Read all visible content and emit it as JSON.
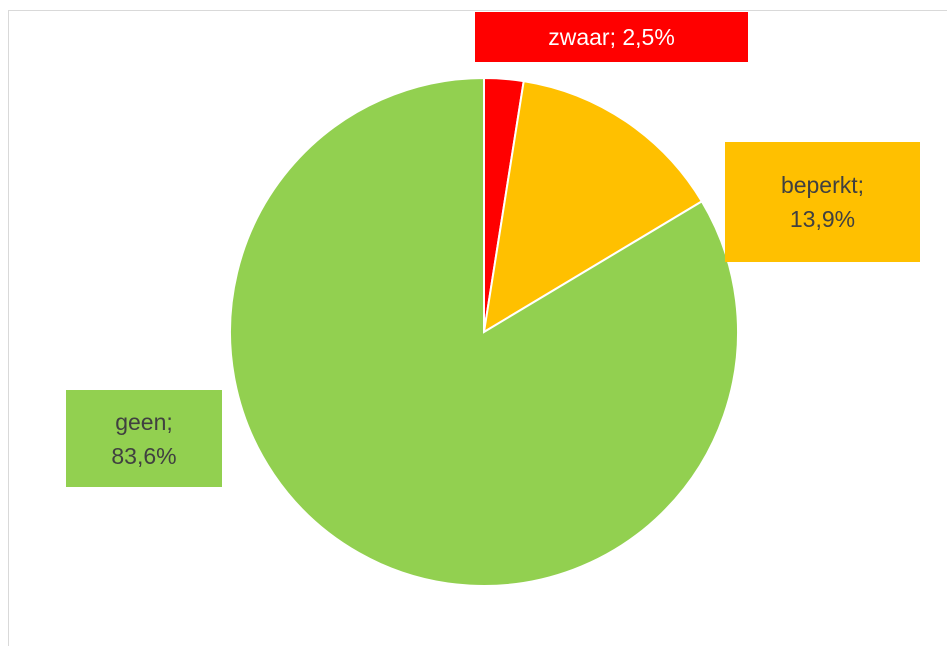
{
  "chart_data": {
    "type": "pie",
    "values": [
      2.5,
      13.9,
      83.6
    ],
    "value_labels": [
      "zwaar; 2,5%",
      "beperkt; 13,9%",
      "geen; 83,6%"
    ],
    "colors": [
      "#ff0000",
      "#ffc000",
      "#92d050"
    ]
  }
}
